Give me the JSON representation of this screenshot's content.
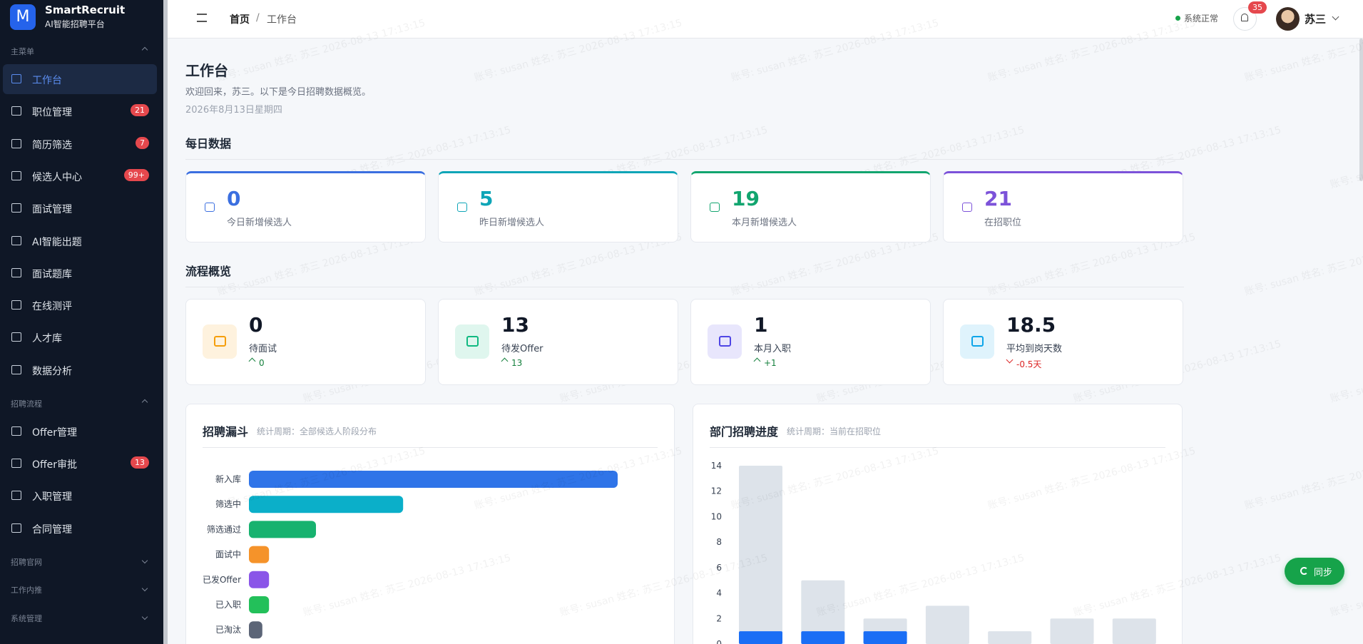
{
  "sidebar": {
    "logo": "M",
    "brand": "SmartRecruit",
    "subtitle": "AI智能招聘平台",
    "sections": [
      {
        "title": "主菜单",
        "items": [
          {
            "label": "工作台",
            "active": true
          },
          {
            "label": "职位管理",
            "badge": "21"
          },
          {
            "label": "简历筛选",
            "badge": "7"
          },
          {
            "label": "候选人中心",
            "badge": "99+"
          },
          {
            "label": "面试管理"
          },
          {
            "label": "AI智能出题"
          },
          {
            "label": "面试题库"
          },
          {
            "label": "在线测评"
          },
          {
            "label": "人才库"
          },
          {
            "label": "数据分析"
          }
        ]
      },
      {
        "title": "招聘流程",
        "items": [
          {
            "label": "Offer管理"
          },
          {
            "label": "Offer审批",
            "badge": "13"
          },
          {
            "label": "入职管理"
          },
          {
            "label": "合同管理"
          }
        ]
      },
      {
        "title": "招聘官网"
      },
      {
        "title": "工作内推"
      },
      {
        "title": "系统管理"
      }
    ]
  },
  "header": {
    "breadcrumb": [
      "首页",
      "工作台"
    ],
    "separator": "/",
    "status": "系统正常",
    "notifications": "35",
    "user": "苏三"
  },
  "page": {
    "title": "工作台",
    "welcome": "欢迎回来，苏三。以下是今日招聘数据概览。",
    "date": "2026年8月13日星期四"
  },
  "daily": {
    "title": "每日数据",
    "cards": [
      {
        "value": 0,
        "label": "今日新增候选人",
        "color": "#3b6fe0"
      },
      {
        "value": 5,
        "label": "昨日新增候选人",
        "color": "#0ea5b7"
      },
      {
        "value": 19,
        "label": "本月新增候选人",
        "color": "#12a56f"
      },
      {
        "value": 21,
        "label": "在招职位",
        "color": "#7c52d9"
      }
    ]
  },
  "flow": {
    "title": "流程概览",
    "cards": [
      {
        "value": 0,
        "label": "待面试",
        "change": "0",
        "trend": "up",
        "color": "#f59e0b"
      },
      {
        "value": 13,
        "label": "待发Offer",
        "change": "13",
        "trend": "up",
        "color": "#10b981"
      },
      {
        "value": 1,
        "label": "本月入职",
        "change": "+1",
        "trend": "up",
        "color": "#4f46e5"
      },
      {
        "value": 18.5,
        "label": "平均到岗天数",
        "change": "-0.5天",
        "trend": "down",
        "color": "#0ea5e9"
      }
    ]
  },
  "charts": [
    {
      "type": "hbar",
      "title": "招聘漏斗",
      "subtitle": "统计周期：全部候选人阶段分布",
      "categories": [
        "新入库",
        "筛选中",
        "筛选通过",
        "面试中",
        "已发Offer",
        "已入职",
        "已淘汰"
      ],
      "values": [
        55,
        23,
        10,
        3,
        3,
        3,
        2
      ],
      "colors": [
        "#2f74e8",
        "#0bafc9",
        "#17b26f",
        "#f5932a",
        "#8a55e8",
        "#23c05a",
        "#5c6577"
      ],
      "xlim": [
        0,
        55
      ]
    },
    {
      "type": "bar",
      "title": "部门招聘进度",
      "subtitle": "统计周期：当前在招职位",
      "categories": [
        null,
        null,
        null,
        null,
        null,
        null,
        null
      ],
      "series": [
        {
          "color": "#dde3ea",
          "values": [
            14,
            5,
            2,
            3,
            1,
            2,
            2
          ]
        },
        {
          "color": "#1a6ef5",
          "values": [
            1,
            1,
            1,
            0,
            0,
            0,
            0
          ]
        }
      ],
      "ylim": [
        0,
        14
      ],
      "yticks": [
        0,
        2,
        4,
        6,
        8,
        10,
        12,
        14
      ],
      "grid": false
    }
  ],
  "sync": "同步",
  "watermark": "账号: susan 姓名: 苏三 2026-08-13 17:13:15"
}
